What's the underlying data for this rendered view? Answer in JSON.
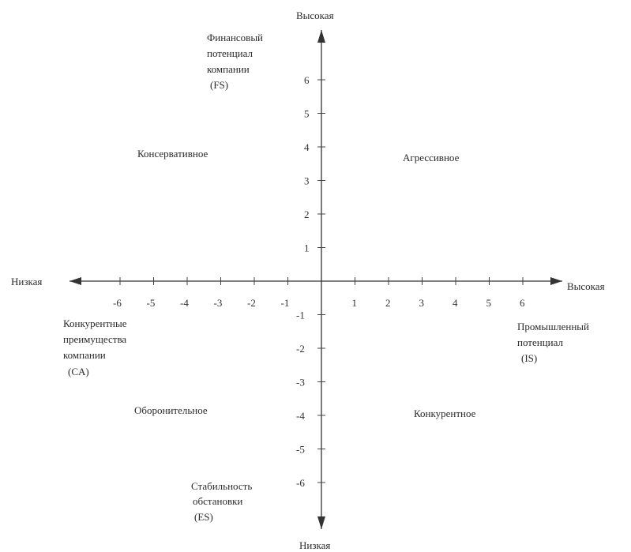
{
  "vertical_axis": {
    "top_label": "Высокая",
    "bottom_label": "Низкая",
    "title_lines": [
      "Финансовый",
      "потенциал",
      "компании",
      "(FS)"
    ],
    "bottom_title_lines": [
      "Стабильность",
      "обстановки",
      "(ES)"
    ]
  },
  "horizontal_axis": {
    "left_label": "Низкая",
    "right_label": "Высокая",
    "left_title_lines": [
      "Конкурентные",
      "преимущества",
      "компании",
      "(CA)"
    ],
    "right_title_lines": [
      "Промышленный",
      "потенциал",
      "(IS)"
    ]
  },
  "quadrants": {
    "top_left": "Консервативное",
    "top_right": "Агрессивное",
    "bottom_left": "Оборонительное",
    "bottom_right": "Конкурентное"
  },
  "ticks": {
    "x_positive": [
      "1",
      "2",
      "3",
      "4",
      "5",
      "6"
    ],
    "x_negative": [
      "-6",
      "-5",
      "-4",
      "-3",
      "-2",
      "-1"
    ],
    "y_positive": [
      "1",
      "2",
      "3",
      "4",
      "5",
      "6"
    ],
    "y_negative": [
      "-1",
      "-2",
      "-3",
      "-4",
      "-5",
      "-6"
    ]
  }
}
